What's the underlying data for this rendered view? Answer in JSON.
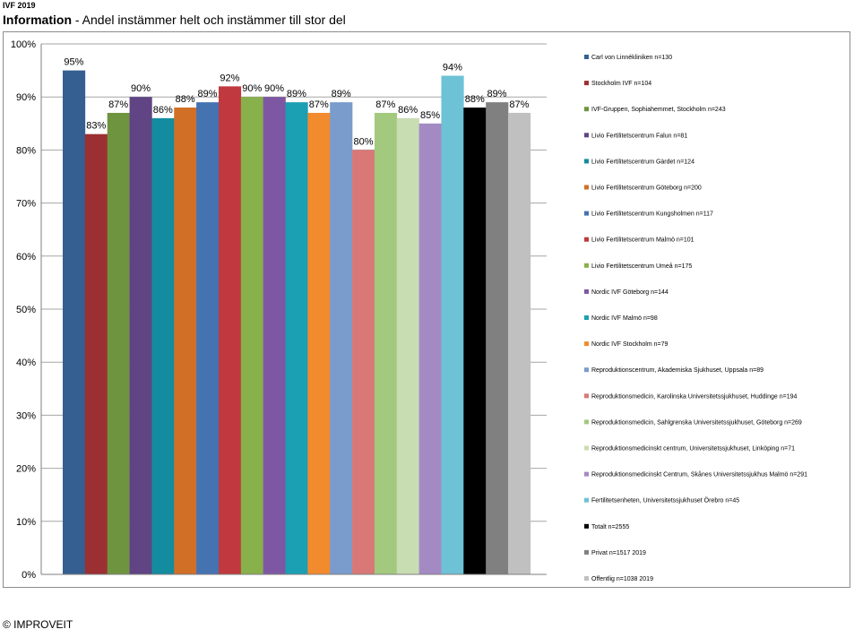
{
  "header": {
    "tag": "IVF 2019",
    "title_bold": "Information",
    "title_rest": " - Andel instämmer helt och instämmer till stor del"
  },
  "footer": {
    "copyright": "© IMPROVEIT"
  },
  "chart_data": {
    "type": "bar",
    "ylim": [
      0,
      100
    ],
    "yticks": [
      "0%",
      "10%",
      "20%",
      "30%",
      "40%",
      "50%",
      "60%",
      "70%",
      "80%",
      "90%",
      "100%"
    ],
    "grid": true,
    "legend_position": "right",
    "categories": [
      "Carl von Linnékliniken n=130",
      "Stockholm IVF n=104",
      "IVF-Gruppen, Sophiahemmet, Stockholm n=243",
      "Livio Fertilitetscentrum Falun n=81",
      "Livio Fertilitetscentrum Gärdet n=124",
      "Livio Fertilitetscentrum Göteborg n=200",
      "Livio Fertilitetscentrum Kungsholmen n=117",
      "Livio Fertilitetscentrum Malmö n=101",
      "Livio Fertilitetscentrum Umeå n=175",
      "Nordic IVF Göteborg n=144",
      "Nordic IVF Malmö n=98",
      "Nordic IVF Stockholm n=79",
      "Reproduktionscentrum, Akademiska Sjukhuset, Uppsala n=89",
      "Reproduktionsmedicin, Karolinska Universitetssjukhuset, Huddinge n=194",
      "Reproduktionsmedicin, Sahlgrenska Universitetssjukhuset, Göteborg n=269",
      "Reproduktionsmedicinskt centrum, Universitetssjukhuset, Linköping n=71",
      "Reproduktionsmedicinskt Centrum, Skånes Universitetssjukhus Malmö n=291",
      "Fertilitetsenheten, Universitetssjukhuset Örebro n=45",
      "Totalt n=2555",
      "Privat n=1517 2019",
      "Offentlig n=1038 2019"
    ],
    "values": [
      95,
      83,
      87,
      90,
      86,
      88,
      89,
      92,
      90,
      90,
      89,
      87,
      89,
      80,
      87,
      86,
      85,
      94,
      88,
      89,
      87
    ],
    "data_labels": [
      "95%",
      "83%",
      "87%",
      "90%",
      "86%",
      "88%",
      "89%",
      "92%",
      "90%",
      "90%",
      "89%",
      "87%",
      "89%",
      "80%",
      "87%",
      "86%",
      "85%",
      "94%",
      "88%",
      "89%",
      "87%"
    ],
    "colors": [
      "#355f91",
      "#9c2f32",
      "#6f9440",
      "#604484",
      "#138ca0",
      "#d16f26",
      "#4573b2",
      "#c0393e",
      "#88b04b",
      "#7e57a2",
      "#1b9fb3",
      "#f28a2e",
      "#7a9ccc",
      "#d97876",
      "#a3c97e",
      "#c9ddb3",
      "#a48ac2",
      "#6dc2d6",
      "#000000",
      "#808080",
      "#c0c0c0"
    ]
  }
}
